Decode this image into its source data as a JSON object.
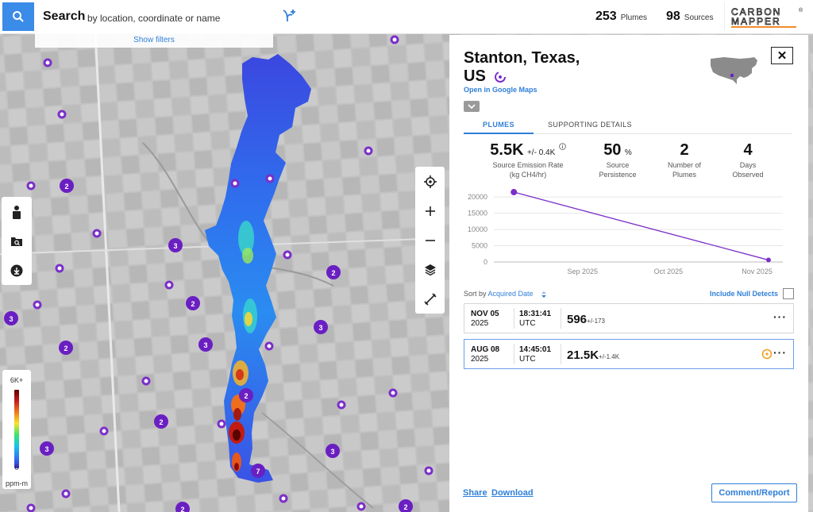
{
  "header": {
    "search_title": "Search",
    "search_hint": "by location, coordinate or name",
    "plumes_count": "253",
    "plumes_label": "Plumes",
    "sources_count": "98",
    "sources_label": "Sources",
    "logo_line1": "CARBON",
    "logo_line2": "MAPPER",
    "logo_mark": "®"
  },
  "filters": {
    "label": "Show filters"
  },
  "map": {
    "clusters": [
      "2",
      "3",
      "2",
      "2",
      "3",
      "3",
      "2",
      "2",
      "2",
      "3",
      "3",
      "7",
      "2",
      "2",
      "3"
    ]
  },
  "legend": {
    "max_label": "6K+",
    "min_label": "0",
    "unit": "ppm-m"
  },
  "panel": {
    "title_line1": "Stanton, Texas,",
    "title_line2": "US",
    "google_maps_link": "Open in Google Maps",
    "tabs": [
      "PLUMES",
      "SUPPORTING DETAILS"
    ],
    "stats": [
      {
        "value": "5.5K",
        "suffix": "+/- 0.4K",
        "desc1": "Source Emission Rate",
        "desc2": "(kg CH4/hr)"
      },
      {
        "value": "50",
        "suffix": "%",
        "desc1": "Source",
        "desc2": "Persistence"
      },
      {
        "value": "2",
        "suffix": "",
        "desc1": "Number of",
        "desc2": "Plumes"
      },
      {
        "value": "4",
        "suffix": "",
        "desc1": "Days",
        "desc2": "Observed"
      }
    ],
    "sort_label": "Sort by",
    "sort_field": "Acquired Date",
    "null_detects_label": "Include Null Detects",
    "plumes": [
      {
        "date": "NOV 05",
        "year": "2025",
        "time": "18:31:41",
        "tz": "UTC",
        "value": "596",
        "uncertainty": "+/-173",
        "selected": false
      },
      {
        "date": "AUG 08",
        "year": "2025",
        "time": "14:45:01",
        "tz": "UTC",
        "value": "21.5K",
        "uncertainty": "+/-1.4K",
        "selected": true
      }
    ]
  },
  "chart_data": {
    "type": "line",
    "x": [
      "2025-08-08",
      "2025-11-05"
    ],
    "series": [
      {
        "values": [
          21500,
          596
        ],
        "color": "#7b2fc9"
      }
    ],
    "xticks": [
      "Sep 2025",
      "Oct 2025",
      "Nov 2025"
    ],
    "yticks": [
      "0",
      "5000",
      "10000",
      "15000",
      "20000"
    ],
    "ylim": [
      0,
      22000
    ],
    "grid": true
  },
  "footer": {
    "share": "Share",
    "download": "Download",
    "comment_report": "Comment/Report"
  }
}
